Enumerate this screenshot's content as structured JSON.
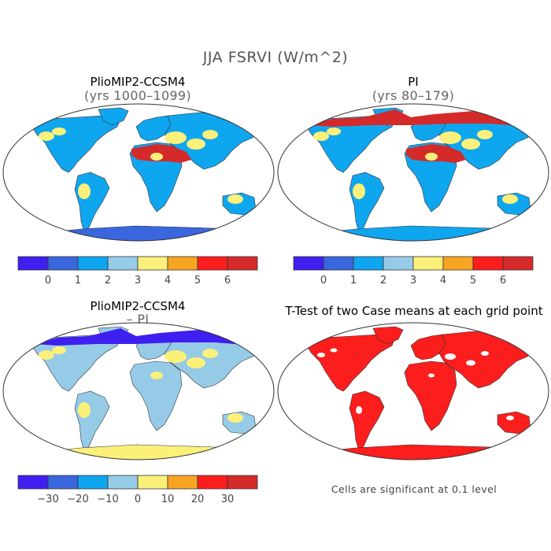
{
  "figure": {
    "title": "JJA FSRVI (W/m^2)"
  },
  "panels": [
    {
      "title": "PlioMIP2-CCSM4",
      "subtitle": "(yrs 1000–1099)"
    },
    {
      "title": "PI",
      "subtitle": "(yrs 80–179)"
    },
    {
      "title": "PlioMIP2-CCSM4",
      "subtitle": "– PI"
    },
    {
      "title": "T-Test of two Case means at each grid point",
      "note": "Cells are significant at 0.1 level"
    }
  ],
  "colorbars": [
    {
      "labels": [
        "0",
        "1",
        "2",
        "3",
        "4",
        "5",
        "6"
      ],
      "colors": [
        "#3f1ff0",
        "#3a66de",
        "#0fa6f0",
        "#96cbe8",
        "#fbf07a",
        "#f8a523",
        "#fc1d1d",
        "#d42a2a"
      ]
    },
    {
      "labels": [
        "0",
        "1",
        "2",
        "3",
        "4",
        "5",
        "6"
      ],
      "colors": [
        "#3f1ff0",
        "#3a66de",
        "#0fa6f0",
        "#96cbe8",
        "#fbf07a",
        "#f8a523",
        "#fc1d1d",
        "#d42a2a"
      ]
    },
    {
      "labels": [
        "−30",
        "−20",
        "−10",
        "0",
        "10",
        "20",
        "30"
      ],
      "colors": [
        "#3f1ff0",
        "#3a66de",
        "#0fa6f0",
        "#96cbe8",
        "#fbf07a",
        "#f8a523",
        "#fc1d1d",
        "#d42a2a"
      ]
    }
  ],
  "map_fills": {
    "p1": {
      "land": "#0fa6f0",
      "desert": "#d42a2a",
      "arctic": "#d42a2a",
      "antarctica": "#3a66de",
      "patches": "#fbf07a"
    },
    "p2": {
      "land": "#0fa6f0",
      "desert": "#d42a2a",
      "arctic": "#d42a2a",
      "antarctica": "#0fa6f0",
      "patches": "#fbf07a"
    },
    "p3": {
      "land": "#96cbe8",
      "desert": "#96cbe8",
      "arctic": "#3f1ff0",
      "antarctica": "#fbf07a",
      "patches": "#fbf07a"
    },
    "p4": {
      "land": "#fc1d1d",
      "desert": "#fc1d1d",
      "arctic": "#fc1d1d",
      "antarctica": "#fc1d1d",
      "patches": "#ffffff"
    }
  }
}
